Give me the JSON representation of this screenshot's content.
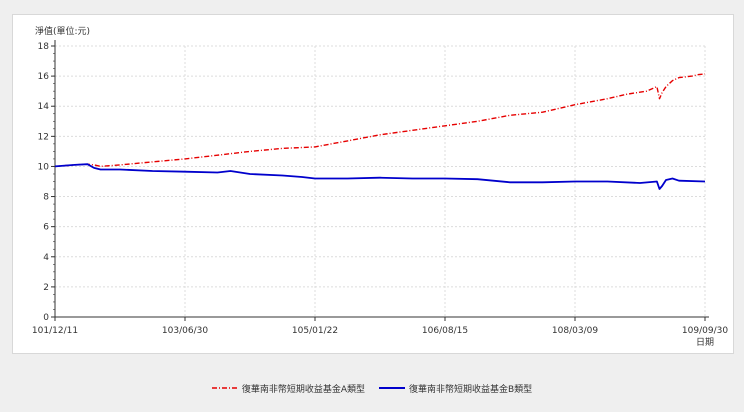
{
  "chart_data": {
    "type": "line",
    "ylabel": "淨值(單位:元)",
    "xlabel": "日期",
    "ylim": [
      0,
      18
    ],
    "yticks": [
      0,
      2,
      4,
      6,
      8,
      10,
      12,
      14,
      16,
      18
    ],
    "xlim": [
      0,
      100
    ],
    "xticks": [
      {
        "x": 0,
        "label": "101/12/11"
      },
      {
        "x": 20,
        "label": "103/06/30"
      },
      {
        "x": 40,
        "label": "105/01/22"
      },
      {
        "x": 60,
        "label": "106/08/15"
      },
      {
        "x": 80,
        "label": "108/03/09"
      },
      {
        "x": 100,
        "label": "109/09/30"
      }
    ],
    "grid": true,
    "legend_position": "bottom",
    "series": [
      {
        "name": "復華南非幣短期收益基金A類型",
        "color": "#e60000",
        "style": "dash-dot",
        "x": [
          0,
          3,
          5,
          6,
          7,
          10,
          15,
          20,
          25,
          30,
          35,
          40,
          45,
          50,
          55,
          60,
          65,
          70,
          75,
          80,
          85,
          88,
          91,
          92.6,
          93,
          93.4,
          94,
          95,
          96,
          97,
          98,
          99,
          100
        ],
        "y": [
          10.0,
          10.1,
          10.15,
          10.1,
          10.0,
          10.1,
          10.3,
          10.5,
          10.75,
          11.0,
          11.2,
          11.3,
          11.7,
          12.1,
          12.4,
          12.7,
          13.0,
          13.4,
          13.6,
          14.1,
          14.5,
          14.8,
          15.0,
          15.3,
          14.5,
          14.9,
          15.3,
          15.7,
          15.9,
          15.95,
          16.0,
          16.1,
          16.15
        ]
      },
      {
        "name": "復華南非幣短期收益基金B類型",
        "color": "#0000cc",
        "style": "solid",
        "x": [
          0,
          3,
          5,
          6,
          7,
          10,
          15,
          20,
          25,
          27,
          30,
          35,
          38,
          40,
          45,
          50,
          55,
          60,
          65,
          70,
          75,
          80,
          85,
          90,
          92.6,
          93,
          93.4,
          94,
          95,
          96,
          100
        ],
        "y": [
          10.0,
          10.1,
          10.15,
          9.9,
          9.8,
          9.8,
          9.7,
          9.65,
          9.6,
          9.7,
          9.5,
          9.4,
          9.3,
          9.2,
          9.2,
          9.25,
          9.2,
          9.2,
          9.15,
          8.95,
          8.95,
          9.0,
          9.0,
          8.9,
          9.0,
          8.5,
          8.7,
          9.1,
          9.2,
          9.05,
          9.0
        ]
      }
    ]
  }
}
